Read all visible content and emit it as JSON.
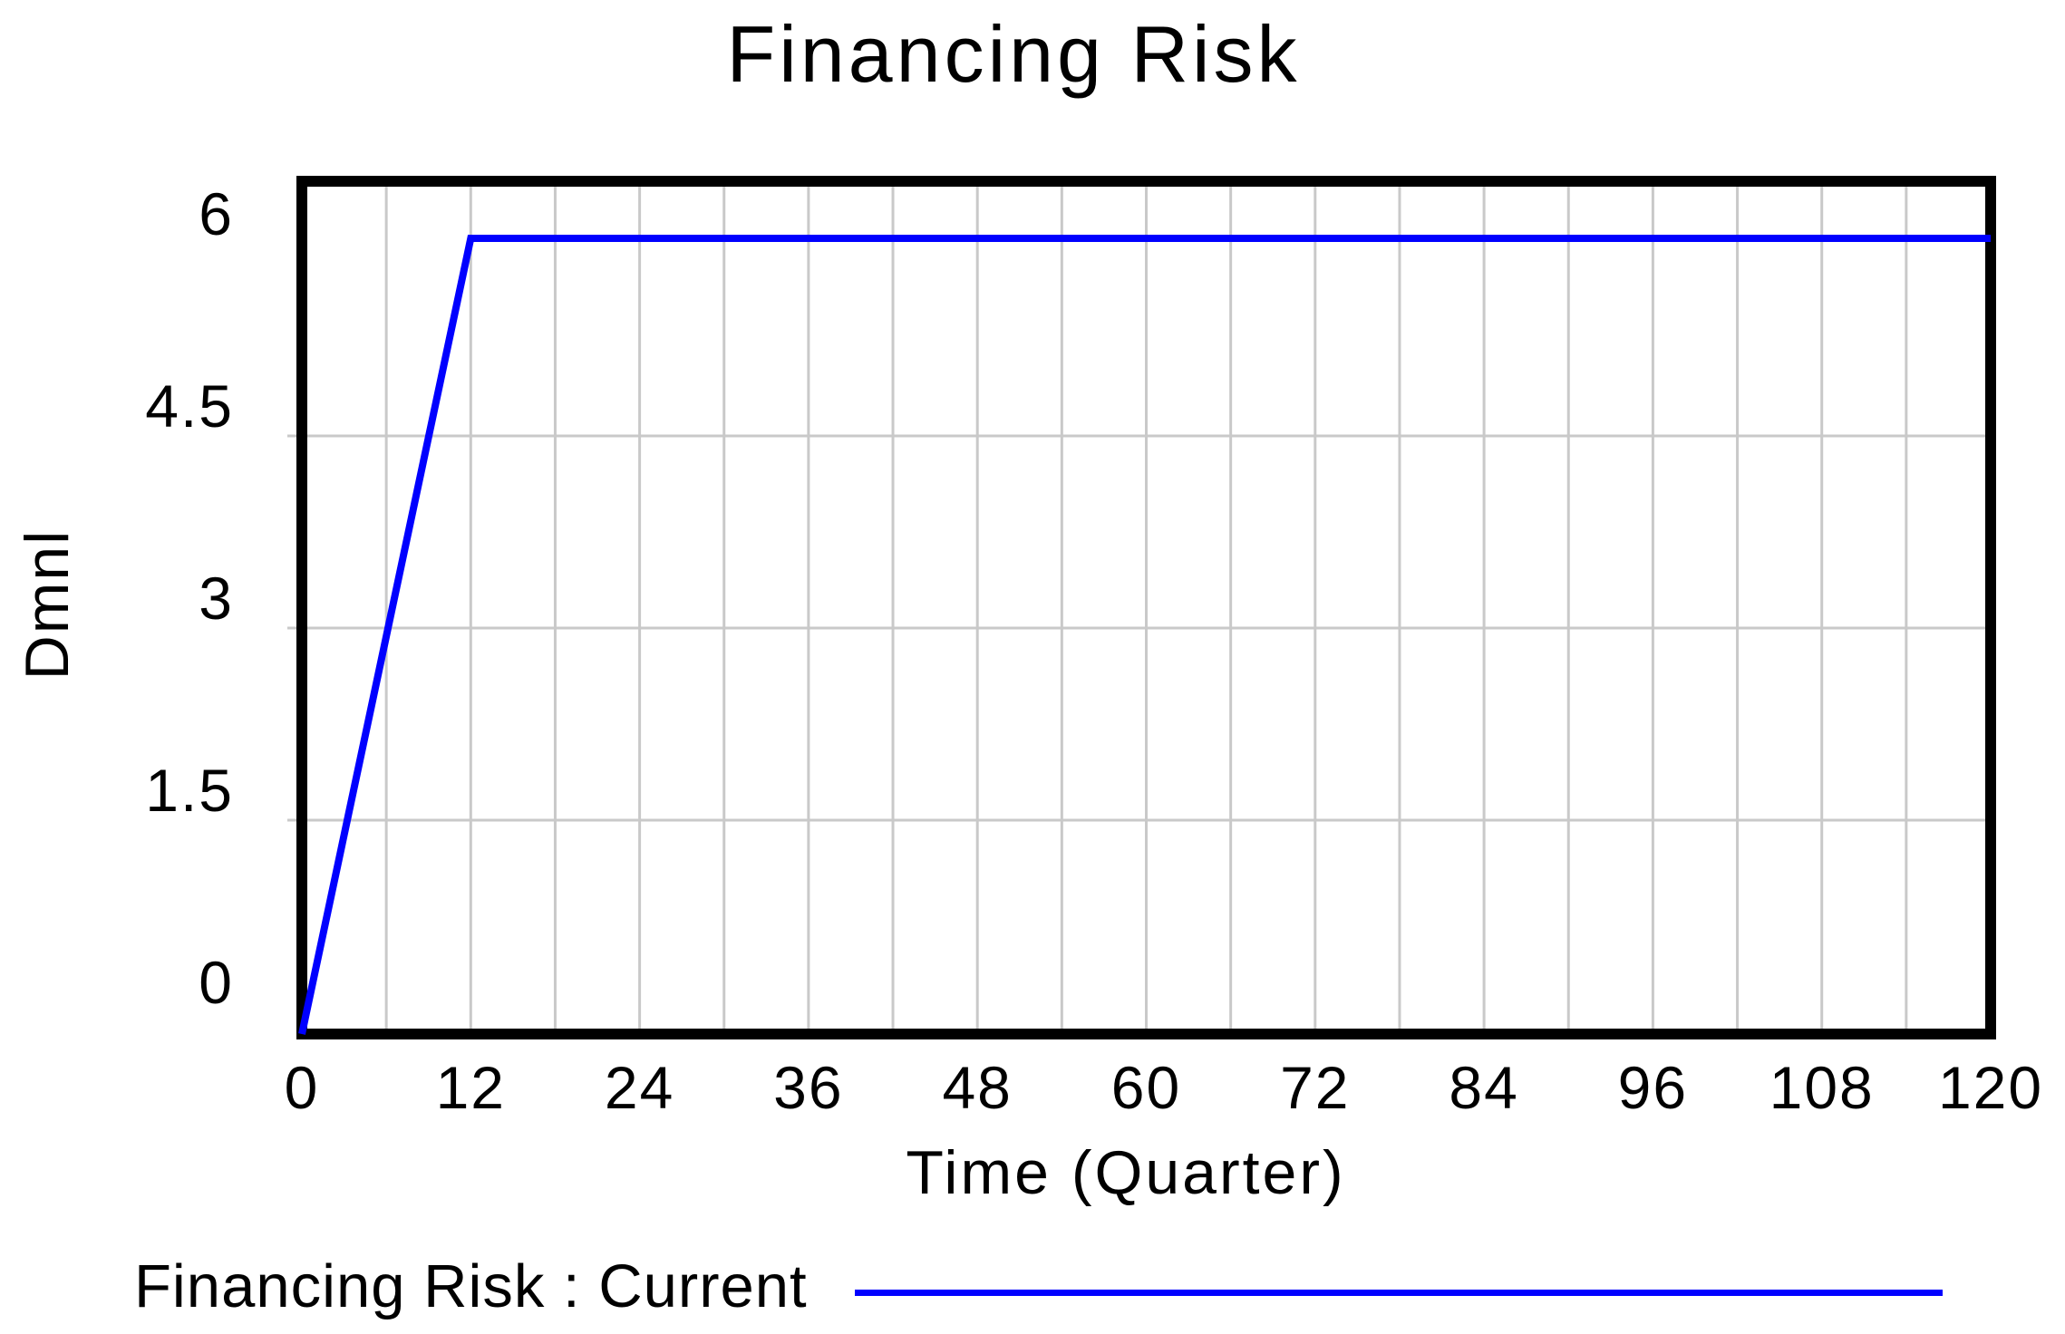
{
  "chart_data": {
    "type": "line",
    "title": "Financing Risk",
    "xlabel": "Time (Quarter)",
    "ylabel": "Dmnl",
    "xlim": [
      0,
      120
    ],
    "ylim": [
      0,
      6
    ],
    "x_ticks": [
      0,
      12,
      24,
      36,
      48,
      60,
      72,
      84,
      96,
      108,
      120
    ],
    "x_tick_labels": [
      "0",
      "12",
      "24",
      "36",
      "48",
      "60",
      "72",
      "84",
      "96",
      "108",
      "120"
    ],
    "y_ticks": [
      0,
      1.5,
      3,
      4.5,
      6
    ],
    "y_tick_labels": [
      "0",
      "1.5",
      "3",
      "4.5",
      "6"
    ],
    "x_gridline_step": 6,
    "y_gridline_values": [
      1.5,
      3,
      4.5
    ],
    "grid": true,
    "legend_position": "below-left",
    "series": [
      {
        "name": "Financing Risk : Current",
        "color": "#0000ff",
        "x": [
          0,
          12,
          120
        ],
        "y": [
          0,
          5.8,
          5.8
        ]
      }
    ]
  },
  "legend": {
    "entries": [
      {
        "label": "Financing Risk : Current",
        "color": "#0000ff"
      }
    ]
  },
  "colors": {
    "background": "#ffffff",
    "frame": "#000000",
    "gridline": "#c9c9c9",
    "text": "#000000",
    "series_blue": "#0000ff"
  }
}
